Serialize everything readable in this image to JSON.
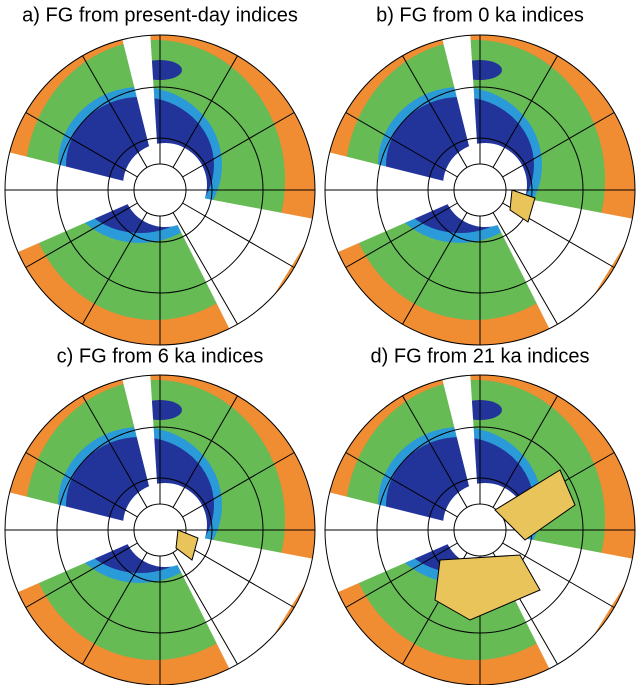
{
  "panels": [
    {
      "title": "a) FG from present-day indices"
    },
    {
      "title": "b) FG from 0 ka indices"
    },
    {
      "title": "c) FG from 6 ka indices"
    },
    {
      "title": "d) FG from 21 ka indices"
    }
  ]
}
